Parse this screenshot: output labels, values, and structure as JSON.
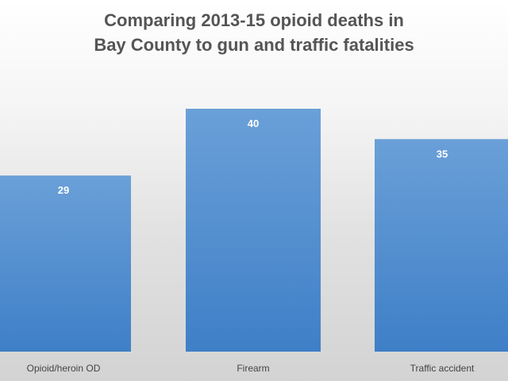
{
  "chart_data": {
    "type": "bar",
    "title_lines": [
      "Comparing 2013-15 opioid deaths in",
      "Bay County to gun and traffic fatalities"
    ],
    "categories": [
      "Opioid/heroin OD",
      "Firearm",
      "Traffic accident"
    ],
    "values": [
      29,
      40,
      35
    ],
    "data_labels": [
      "29",
      "40",
      "35"
    ],
    "ylim": [
      0,
      40
    ],
    "grid": false,
    "legend": "none",
    "colors": {
      "bar_top": "#6aa0d8",
      "bar_bottom": "#3f7fc7",
      "title": "#555555",
      "data_label": "#ffffff",
      "category_label": "#444444"
    }
  }
}
